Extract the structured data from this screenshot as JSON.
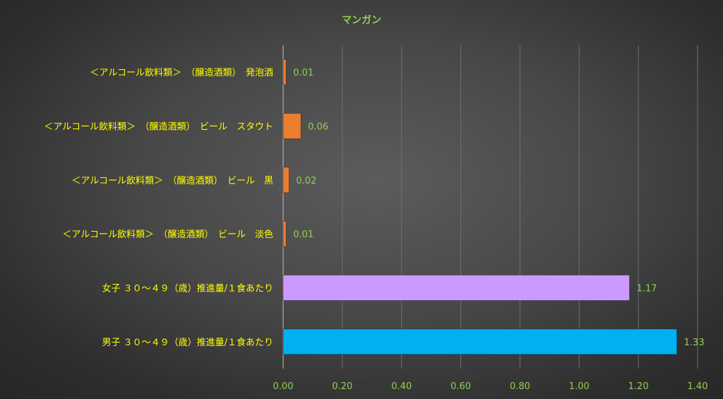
{
  "chart_data": {
    "type": "bar",
    "orientation": "horizontal",
    "title": "マンガン",
    "categories": [
      "＜アルコール飲料類＞　（醸造酒類）　発泡酒",
      "＜アルコール飲料類＞　（醸造酒類）　ビール　スタウト",
      "＜アルコール飲料類＞　（醸造酒類）　ビール　黒",
      "＜アルコール飲料類＞　（醸造酒類）　ビール　淡色",
      "女子 ３０～４９（歳）推進量/１食あたり",
      "男子 ３０～４９（歳）推進量/１食あたり"
    ],
    "values": [
      0.01,
      0.06,
      0.02,
      0.01,
      1.17,
      1.33
    ],
    "data_labels": [
      "0.01",
      "0.06",
      "0.02",
      "0.01",
      "1.17",
      "1.33"
    ],
    "bar_colors": [
      "#ed7d31",
      "#ed7d31",
      "#ed7d31",
      "#ed7d31",
      "#cc99ff",
      "#00b0f0"
    ],
    "xlim": [
      0,
      1.4
    ],
    "ticks": [
      0,
      0.2,
      0.4,
      0.6,
      0.8,
      1.0,
      1.2,
      1.4
    ],
    "tick_labels": [
      "0.00",
      "0.20",
      "0.40",
      "0.60",
      "0.80",
      "1.00",
      "1.20",
      "1.40"
    ],
    "grid": true,
    "legend": "none",
    "colors": {
      "title": "#92d050",
      "category_text": "#ffff00",
      "tick_text": "#92d050",
      "data_label_text": "#92d050",
      "grid": "#6e6e6e",
      "axis": "#bfbfbf"
    }
  }
}
